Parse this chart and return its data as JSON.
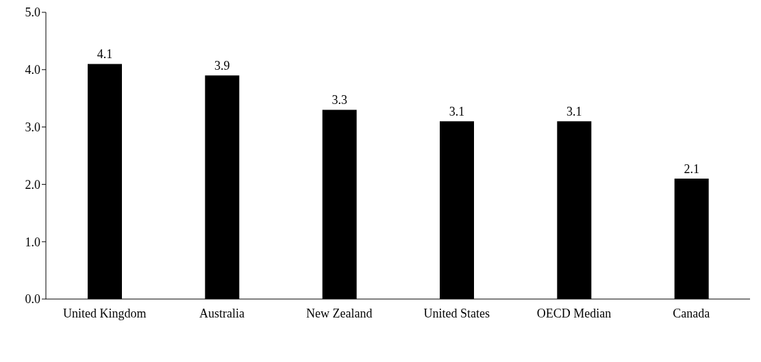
{
  "chart_data": {
    "type": "bar",
    "categories": [
      "United Kingdom",
      "Australia",
      "New Zealand",
      "United States",
      "OECD Median",
      "Canada"
    ],
    "values": [
      4.1,
      3.9,
      3.3,
      3.1,
      3.1,
      2.1
    ],
    "color": "#000000",
    "ylim": [
      0,
      5
    ],
    "yticks": [
      {
        "value": 0,
        "label": "0.0"
      },
      {
        "value": 1,
        "label": "1.0"
      },
      {
        "value": 2,
        "label": "2.0"
      },
      {
        "value": 3,
        "label": "3.0"
      },
      {
        "value": 4,
        "label": "4.0"
      },
      {
        "value": 5,
        "label": "5.0"
      }
    ],
    "grid": false,
    "data_labels": true
  }
}
